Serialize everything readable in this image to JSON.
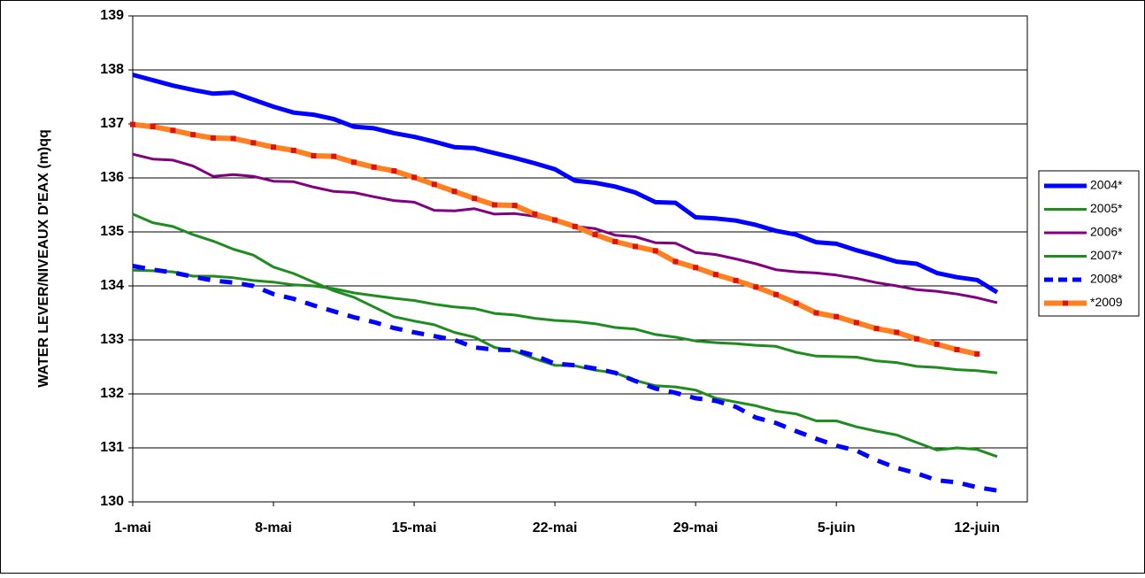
{
  "chart_data": {
    "type": "line",
    "title": "",
    "xlabel": "",
    "ylabel": "WATER LEVER/NIVEAUX D'EAX (m)qq",
    "ylim": [
      130,
      139
    ],
    "yticks": [
      "139",
      "138",
      "137",
      "136",
      "135",
      "134",
      "133",
      "132",
      "131",
      "130"
    ],
    "xlim": [
      0,
      44.5
    ],
    "xticks": [
      {
        "label": "1-mai",
        "day": 0
      },
      {
        "label": "8-mai",
        "day": 7
      },
      {
        "label": "15-mai",
        "day": 14
      },
      {
        "label": "22-mai",
        "day": 21
      },
      {
        "label": "29-mai",
        "day": 28
      },
      {
        "label": "5-juin",
        "day": 35
      },
      {
        "label": "12-juin",
        "day": 42
      }
    ],
    "grid": "horizontal",
    "legend_position": "right",
    "series": [
      {
        "name": "2004*",
        "color": "#0000ff",
        "width": 5,
        "dash": "none",
        "markers": false,
        "start_day": 0,
        "values": [
          137.91,
          137.81,
          137.71,
          137.63,
          137.56,
          137.58,
          137.45,
          137.32,
          137.21,
          137.17,
          137.09,
          136.95,
          136.92,
          136.83,
          136.76,
          136.67,
          136.57,
          136.55,
          136.46,
          136.37,
          136.27,
          136.16,
          135.95,
          135.91,
          135.84,
          135.73,
          135.55,
          135.54,
          135.27,
          135.25,
          135.21,
          135.13,
          135.02,
          134.95,
          134.81,
          134.78,
          134.66,
          134.56,
          134.45,
          134.41,
          134.24,
          134.16,
          134.11,
          133.88
        ]
      },
      {
        "name": "2005*",
        "color": "#1f8c1f",
        "width": 3,
        "dash": "none",
        "markers": false,
        "start_day": 0,
        "values": [
          135.33,
          135.17,
          135.1,
          134.95,
          134.83,
          134.68,
          134.57,
          134.35,
          134.23,
          134.07,
          133.91,
          133.79,
          133.61,
          133.43,
          133.35,
          133.28,
          133.14,
          133.05,
          132.86,
          132.79,
          132.65,
          132.53,
          132.52,
          132.44,
          132.39,
          132.25,
          132.15,
          132.13,
          132.07,
          131.92,
          131.85,
          131.78,
          131.68,
          131.63,
          131.5,
          131.5,
          131.39,
          131.31,
          131.24,
          131.1,
          130.96,
          131.0,
          130.97,
          130.84
        ]
      },
      {
        "name": "2006*",
        "color": "#800080",
        "width": 3,
        "dash": "none",
        "markers": false,
        "start_day": 0,
        "values": [
          136.44,
          136.35,
          136.33,
          136.22,
          136.03,
          136.06,
          136.03,
          135.94,
          135.93,
          135.83,
          135.75,
          135.73,
          135.65,
          135.58,
          135.55,
          135.4,
          135.39,
          135.43,
          135.33,
          135.34,
          135.29,
          135.2,
          135.1,
          135.06,
          134.94,
          134.91,
          134.8,
          134.79,
          134.62,
          134.58,
          134.5,
          134.41,
          134.3,
          134.26,
          134.24,
          134.2,
          134.14,
          134.06,
          134.0,
          133.93,
          133.9,
          133.85,
          133.78,
          133.69
        ]
      },
      {
        "name": "2007*",
        "color": "#1f8c1f",
        "width": 3,
        "dash": "none",
        "markers": false,
        "start_day": 0,
        "values": [
          134.29,
          134.28,
          134.26,
          134.18,
          134.18,
          134.15,
          134.1,
          134.07,
          134.02,
          134.0,
          133.95,
          133.87,
          133.82,
          133.77,
          133.73,
          133.66,
          133.61,
          133.58,
          133.49,
          133.46,
          133.4,
          133.36,
          133.34,
          133.3,
          133.23,
          133.2,
          133.1,
          133.05,
          132.98,
          132.95,
          132.93,
          132.9,
          132.88,
          132.77,
          132.7,
          132.69,
          132.68,
          132.61,
          132.58,
          132.51,
          132.49,
          132.45,
          132.43,
          132.39
        ]
      },
      {
        "name": "2008*",
        "color": "#0000ff",
        "width": 5,
        "dash": "14 11",
        "markers": false,
        "start_day": 0,
        "values": [
          134.37,
          134.3,
          134.25,
          134.17,
          134.1,
          134.06,
          134.0,
          133.85,
          133.76,
          133.64,
          133.53,
          133.42,
          133.33,
          133.22,
          133.14,
          133.07,
          133.0,
          132.86,
          132.82,
          132.81,
          132.71,
          132.56,
          132.53,
          132.47,
          132.39,
          132.24,
          132.1,
          132.02,
          131.92,
          131.87,
          131.76,
          131.56,
          131.46,
          131.31,
          131.17,
          131.04,
          130.95,
          130.77,
          130.63,
          130.53,
          130.4,
          130.36,
          130.27,
          130.21
        ]
      },
      {
        "name": "*2009",
        "color": "#ff8020",
        "width": 6,
        "dash": "none",
        "markers": true,
        "marker_color": "#e01010",
        "start_day": 0,
        "values": [
          136.99,
          136.95,
          136.88,
          136.8,
          136.74,
          136.73,
          136.65,
          136.57,
          136.51,
          136.41,
          136.4,
          136.29,
          136.2,
          136.13,
          136.01,
          135.88,
          135.75,
          135.62,
          135.5,
          135.49,
          135.33,
          135.22,
          135.1,
          134.95,
          134.82,
          134.73,
          134.65,
          134.45,
          134.34,
          134.21,
          134.1,
          133.98,
          133.84,
          133.68,
          133.5,
          133.43,
          133.32,
          133.21,
          133.14,
          133.02,
          132.92,
          132.82,
          132.74
        ]
      }
    ]
  }
}
